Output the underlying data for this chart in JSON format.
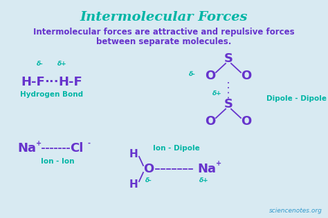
{
  "background_color": "#d8eaf2",
  "title": "Intermolecular Forces",
  "title_color": "#00b5a5",
  "subtitle_line1": "Intermolecular forces are attractive and repulsive forces",
  "subtitle_line2": "between separate molecules.",
  "subtitle_color": "#6633cc",
  "subtitle_fontsize": 8.5,
  "title_fontsize": 14,
  "purple": "#6633cc",
  "teal": "#00b5a5",
  "watermark": "sciencenotes.org",
  "watermark_color": "#3399cc",
  "fig_w": 4.74,
  "fig_h": 3.16,
  "dpi": 100
}
